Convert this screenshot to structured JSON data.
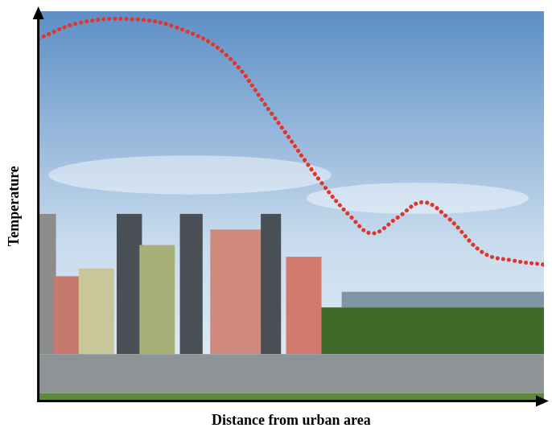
{
  "chart_data": {
    "type": "line",
    "x_label": "Distance from urban area",
    "y_label": "Temperature",
    "x": [
      0,
      8,
      18,
      27,
      37,
      46,
      56,
      62,
      66,
      71,
      76,
      81,
      88,
      94,
      100
    ],
    "values": [
      93,
      97,
      98,
      96,
      89,
      74,
      56,
      47,
      43,
      47,
      51,
      47,
      38,
      36,
      35
    ],
    "color": "#e3342b",
    "line_style": "dotted",
    "marker": "none",
    "xlim": [
      0,
      100
    ],
    "ylim": [
      0,
      100
    ],
    "grid": false,
    "tick_labels": false
  }
}
